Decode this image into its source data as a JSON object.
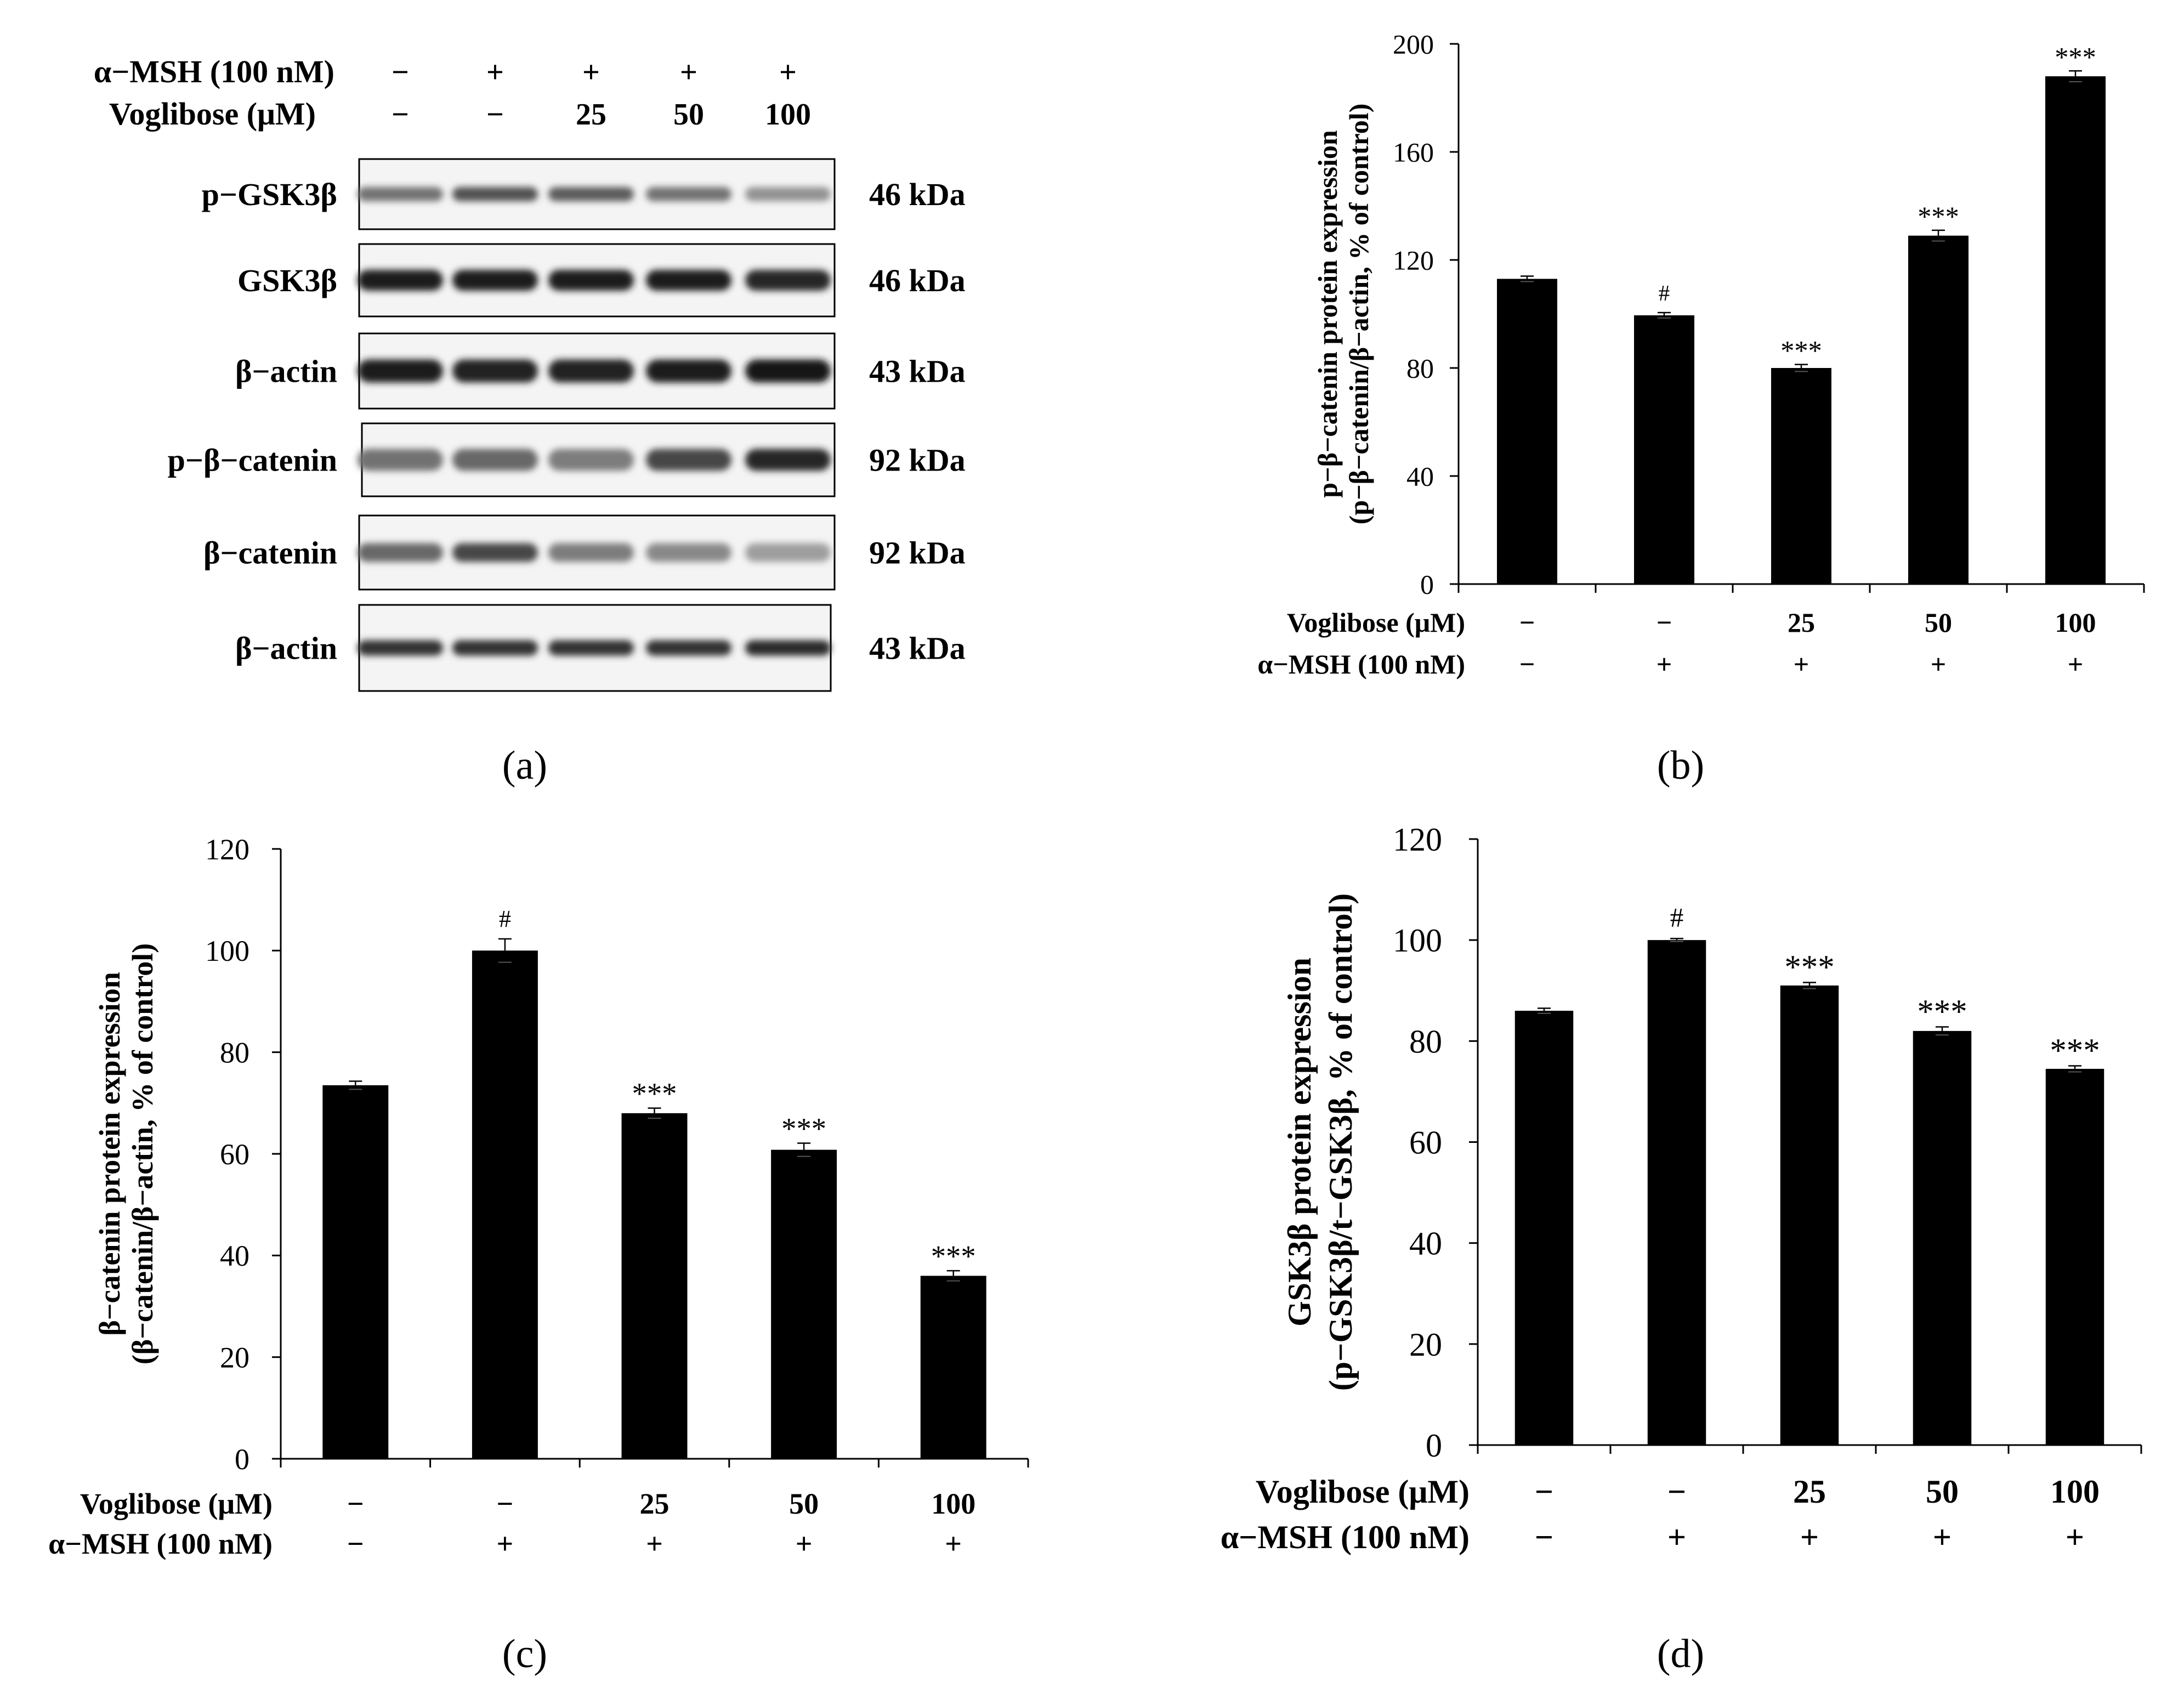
{
  "figure": {
    "panel_labels": [
      "(a)",
      "(b)",
      "(c)",
      "(d)"
    ]
  },
  "blot": {
    "conditions": [
      {
        "label": "α−MSH (100 nM)",
        "values": [
          "−",
          "+",
          "+",
          "+",
          "+"
        ]
      },
      {
        "label": "Voglibose (μM)",
        "values": [
          "−",
          "−",
          "25",
          "50",
          "100"
        ]
      }
    ],
    "rows": [
      {
        "label": "p−GSK3β",
        "size": "46 kDa",
        "intensities": [
          0.55,
          0.7,
          0.65,
          0.55,
          0.4
        ]
      },
      {
        "label": "GSK3β",
        "size": "46 kDa",
        "intensities": [
          0.95,
          0.95,
          0.95,
          0.95,
          0.9
        ]
      },
      {
        "label": "β−actin",
        "size": "43 kDa",
        "intensities": [
          0.95,
          0.92,
          0.92,
          0.95,
          0.97
        ]
      },
      {
        "label": "p−β−catenin",
        "size": "92 kDa",
        "intensities": [
          0.55,
          0.6,
          0.5,
          0.75,
          0.9
        ]
      },
      {
        "label": "β−catenin",
        "size": "92 kDa",
        "intensities": [
          0.6,
          0.75,
          0.5,
          0.45,
          0.35
        ]
      },
      {
        "label": "β−actin",
        "size": "43 kDa",
        "intensities": [
          0.85,
          0.85,
          0.85,
          0.85,
          0.88
        ]
      }
    ]
  },
  "chart_data": [
    {
      "panel": "b",
      "type": "bar",
      "ylabel_lines": [
        "p−β−catenin protein expression",
        "(p−β−catenin/β−actin, % of control)"
      ],
      "ylim": [
        0,
        200
      ],
      "yticks": [
        0,
        40,
        80,
        120,
        160,
        200
      ],
      "values": [
        113,
        99.5,
        80,
        129,
        188
      ],
      "errors": [
        1,
        1,
        1.3,
        2,
        2
      ],
      "annotations": [
        "",
        "#",
        "***",
        "***",
        "***"
      ],
      "condition_rows": [
        {
          "label": "Voglibose (μM)",
          "values": [
            "−",
            "−",
            "25",
            "50",
            "100"
          ]
        },
        {
          "label": "α−MSH (100 nM)",
          "values": [
            "−",
            "+",
            "+",
            "+",
            "+"
          ]
        }
      ]
    },
    {
      "panel": "c",
      "type": "bar",
      "ylabel_lines": [
        "β−catenin protein expression",
        "(β−catenin/β−actin, % of control)"
      ],
      "ylim": [
        0,
        120
      ],
      "yticks": [
        0,
        20,
        40,
        60,
        80,
        100,
        120
      ],
      "values": [
        73.5,
        100,
        68,
        60.8,
        36
      ],
      "errors": [
        0.8,
        2.3,
        1,
        1.3,
        1
      ],
      "annotations": [
        "",
        "#",
        "***",
        "***",
        "***"
      ],
      "condition_rows": [
        {
          "label": "Voglibose (μM)",
          "values": [
            "−",
            "−",
            "25",
            "50",
            "100"
          ]
        },
        {
          "label": "α−MSH (100 nM)",
          "values": [
            "−",
            "+",
            "+",
            "+",
            "+"
          ]
        }
      ]
    },
    {
      "panel": "d",
      "type": "bar",
      "ylabel_lines": [
        "GSK3β protein expression",
        "(p−GSK3β/t−GSK3β, % of control)"
      ],
      "ylim": [
        0,
        120
      ],
      "yticks": [
        0,
        20,
        40,
        60,
        80,
        100,
        120
      ],
      "values": [
        86,
        100,
        91,
        82,
        74.5
      ],
      "errors": [
        0.5,
        0.3,
        0.6,
        0.8,
        0.6
      ],
      "annotations": [
        "",
        "#",
        "***",
        "***",
        "***"
      ],
      "condition_rows": [
        {
          "label": "Voglibose (μM)",
          "values": [
            "−",
            "−",
            "25",
            "50",
            "100"
          ]
        },
        {
          "label": "α−MSH (100 nM)",
          "values": [
            "−",
            "+",
            "+",
            "+",
            "+"
          ]
        }
      ]
    }
  ]
}
